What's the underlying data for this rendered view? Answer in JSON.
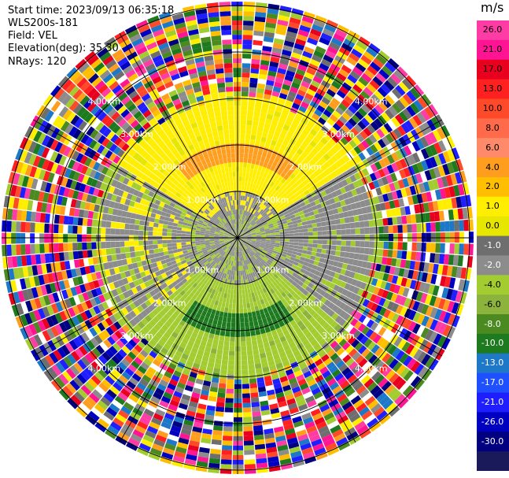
{
  "info": {
    "start_time": "Start time: 2023/09/13 06:35:18",
    "station": "WLS200s-181",
    "field": "Field: VEL",
    "elevation": "Elevation(deg): 35.30",
    "nrays": "NRays: 120"
  },
  "ppi": {
    "range_rings_km": [
      "1.00km",
      "2.00km",
      "3.00km",
      "4.00km"
    ],
    "n_rays": 120
  },
  "colorbar": {
    "unit": "m/s",
    "ticks": [
      "26.0",
      "21.0",
      "17.0",
      "13.0",
      "10.0",
      "8.0",
      "6.0",
      "4.0",
      "2.0",
      "1.0",
      "0.0",
      "-1.0",
      "-2.0",
      "-4.0",
      "-6.0",
      "-8.0",
      "-10.0",
      "-13.0",
      "-17.0",
      "-21.0",
      "-26.0",
      "-30.0"
    ],
    "colors": [
      "#ff3ca5",
      "#ff1493",
      "#e8001e",
      "#ff2020",
      "#ff4a2a",
      "#ff6a4a",
      "#ff8a6a",
      "#ff9e1e",
      "#ffbf00",
      "#ffee00",
      "#e6e600",
      "#6e6e6e",
      "#8c8c8c",
      "#a3cc30",
      "#8cb43c",
      "#4a8a20",
      "#1e7a1e",
      "#1e78c8",
      "#1e50ff",
      "#1e1eff",
      "#0000c0",
      "#000080",
      "#1a1a5a"
    ]
  }
}
